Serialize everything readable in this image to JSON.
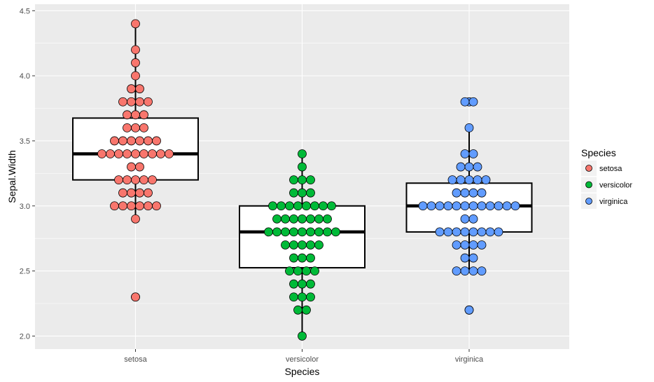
{
  "chart_data": {
    "type": "boxplot-dotplot",
    "xlabel": "Species",
    "ylabel": "Sepal.Width",
    "ylim": [
      1.9,
      4.55
    ],
    "yticks": [
      2.0,
      2.5,
      3.0,
      3.5,
      4.0,
      4.5
    ],
    "ytick_labels": [
      "2.0",
      "2.5",
      "3.0",
      "3.5",
      "4.0",
      "4.5"
    ],
    "categories": [
      "setosa",
      "versicolor",
      "virginica"
    ],
    "grid": true,
    "legend": {
      "title": "Species",
      "position": "right",
      "entries": [
        "setosa",
        "versicolor",
        "virginica"
      ]
    },
    "colors": {
      "setosa": "#F8766D",
      "versicolor": "#00BA38",
      "virginica": "#619CFF",
      "panel": "#EBEBEB",
      "grid": "#FFFFFF"
    },
    "boxes": [
      {
        "name": "setosa",
        "lower_whisker": 2.9,
        "q1": 3.2,
        "median": 3.4,
        "q3": 3.675,
        "upper_whisker": 4.4,
        "outliers": [
          2.3
        ]
      },
      {
        "name": "versicolor",
        "lower_whisker": 2.0,
        "q1": 2.525,
        "median": 2.8,
        "q3": 3.0,
        "upper_whisker": 3.4,
        "outliers": []
      },
      {
        "name": "virginica",
        "lower_whisker": 2.5,
        "q1": 2.8,
        "median": 3.0,
        "q3": 3.175,
        "upper_whisker": 3.6,
        "outliers": [
          2.2,
          3.8
        ]
      }
    ],
    "dots": {
      "setosa": {
        "2.3": 1,
        "2.9": 1,
        "3.0": 6,
        "3.1": 4,
        "3.2": 5,
        "3.3": 2,
        "3.4": 9,
        "3.5": 6,
        "3.6": 3,
        "3.7": 3,
        "3.8": 4,
        "3.9": 2,
        "4.0": 1,
        "4.1": 1,
        "4.2": 1,
        "4.4": 1
      },
      "versicolor": {
        "2.0": 1,
        "2.2": 2,
        "2.3": 3,
        "2.4": 3,
        "2.5": 4,
        "2.6": 3,
        "2.7": 5,
        "2.8": 9,
        "2.9": 7,
        "3.0": 8,
        "3.1": 3,
        "3.2": 3,
        "3.3": 1,
        "3.4": 1
      },
      "virginica": {
        "2.2": 1,
        "2.5": 4,
        "2.6": 2,
        "2.7": 4,
        "2.8": 8,
        "2.9": 2,
        "3.0": 12,
        "3.1": 4,
        "3.2": 5,
        "3.3": 3,
        "3.4": 2,
        "3.6": 1,
        "3.8": 2
      }
    }
  }
}
